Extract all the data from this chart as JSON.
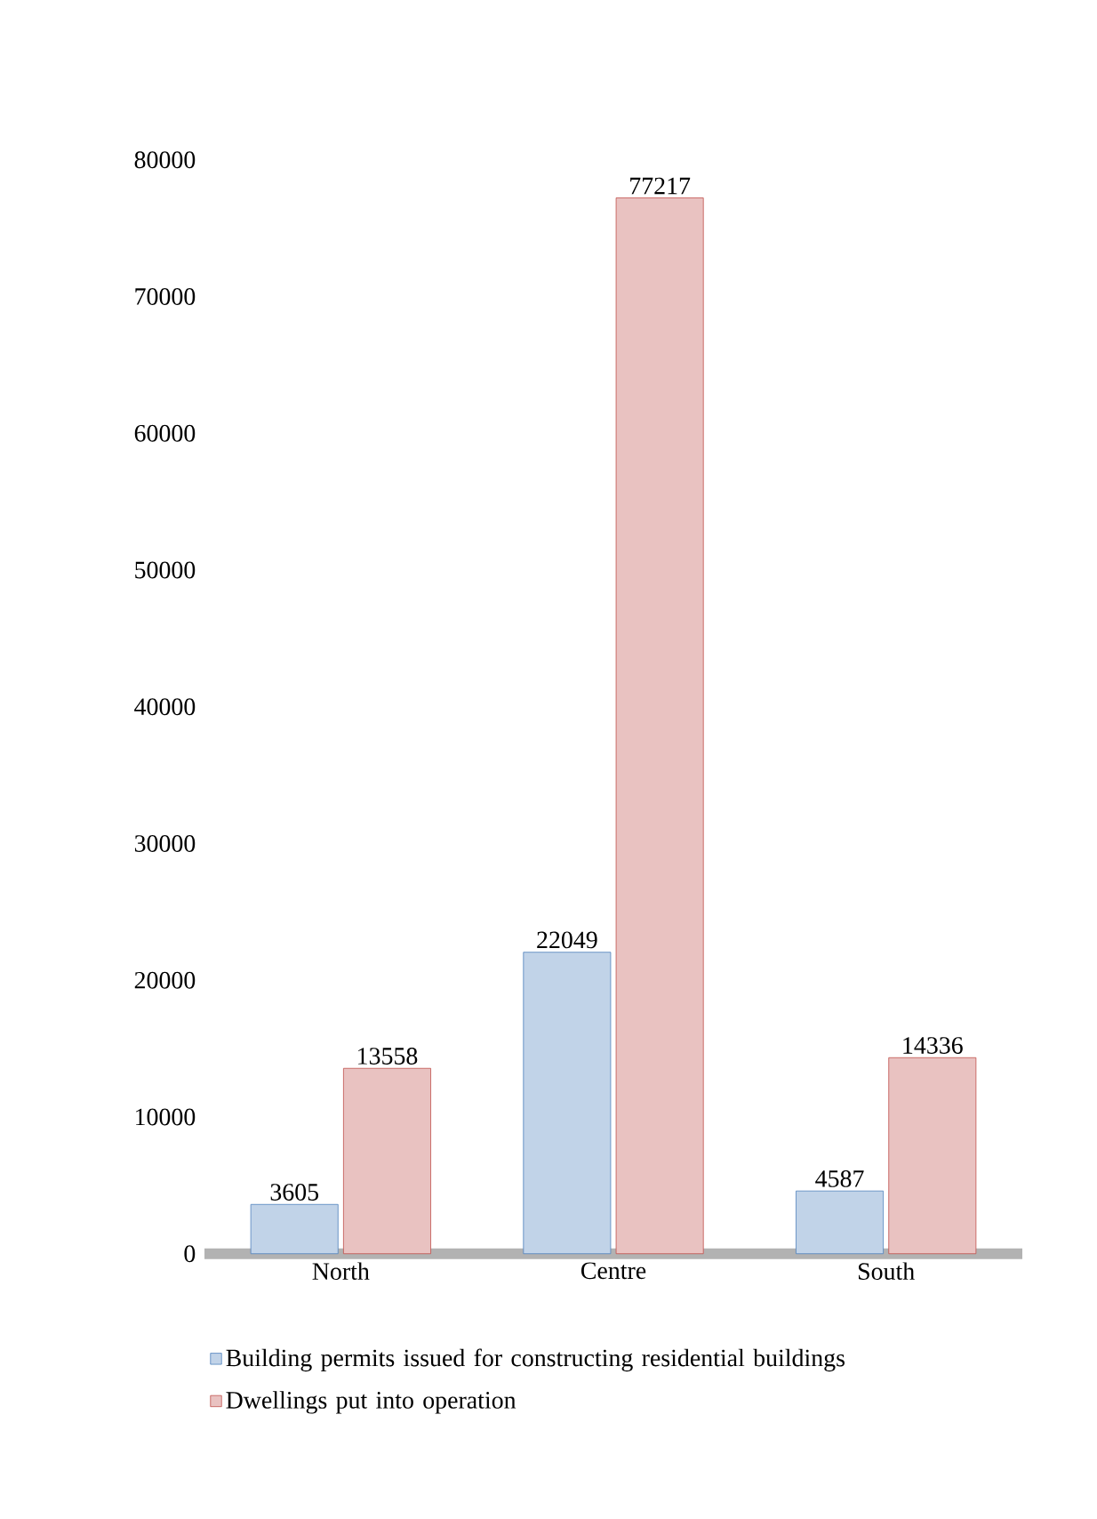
{
  "chart_data": {
    "type": "bar",
    "categories": [
      "North",
      "Centre",
      "South"
    ],
    "series": [
      {
        "name": "Building permits issued for constructing residential buildings",
        "color": "#4f81bd",
        "values": [
          3605,
          22049,
          4587
        ]
      },
      {
        "name": "Dwellings put into operation",
        "color": "#c0504d",
        "values": [
          13558,
          77217,
          14336
        ]
      }
    ],
    "ylim": [
      0,
      80000
    ],
    "yticks": [
      0,
      10000,
      20000,
      30000,
      40000,
      50000,
      60000,
      70000,
      80000
    ],
    "grid": false,
    "legend": "bottom",
    "data_labels": true
  }
}
